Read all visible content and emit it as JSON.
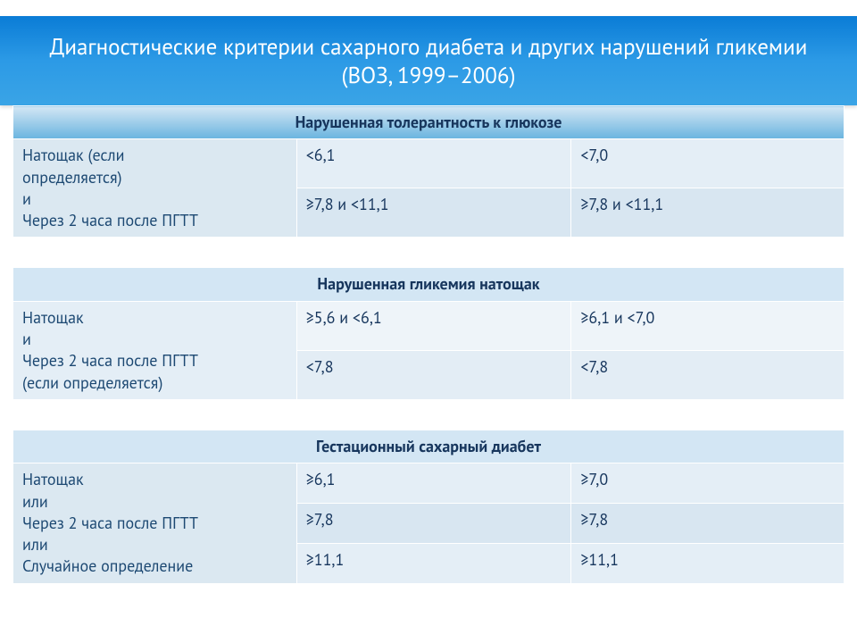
{
  "title": "Диагностические критерии сахарного диабета и других нарушений гликемии (ВОЗ, 1999–2006)",
  "sections": [
    {
      "header": "Нарушенная толерантность к глюкозе",
      "label_lines": [
        "Натощак (если",
        "определяется)",
        "и",
        "Через 2 часа после ПГТТ"
      ],
      "rows": [
        {
          "c1": "<6,1",
          "c2": "<7,0"
        },
        {
          "c1": "≥7,8 и <11,1",
          "c2": "≥7,8 и <11,1"
        }
      ]
    },
    {
      "header": "Нарушенная гликемия натощак",
      "label_lines": [
        "Натощак",
        "и",
        "Через 2 часа после ПГТТ",
        "(если определяется)"
      ],
      "rows": [
        {
          "c1": "≥5,6 и <6,1",
          "c2": "≥6,1 и <7,0"
        },
        {
          "c1": "<7,8",
          "c2": "<7,8"
        }
      ]
    },
    {
      "header": "Гестационный сахарный диабет",
      "label_lines": [
        "Натощак",
        "или",
        "Через 2 часа после ПГТТ",
        "или",
        "Случайное определение"
      ],
      "rows": [
        {
          "c1": "≥6,1",
          "c2": "≥7,0"
        },
        {
          "c1": "≥7,8",
          "c2": "≥7,8"
        },
        {
          "c1": "≥11,1",
          "c2": "≥11,1"
        }
      ]
    }
  ],
  "colors": {
    "title_grad_top": "#0a7cd6",
    "title_grad_bot": "#3aa4e6",
    "text_dark": "#17365d",
    "cell_light": "#e4eef6",
    "cell_mid": "#dbe8f1",
    "hdr_grad_top": "#d3e6f4",
    "hdr_grad_bot": "#6ab4df"
  }
}
